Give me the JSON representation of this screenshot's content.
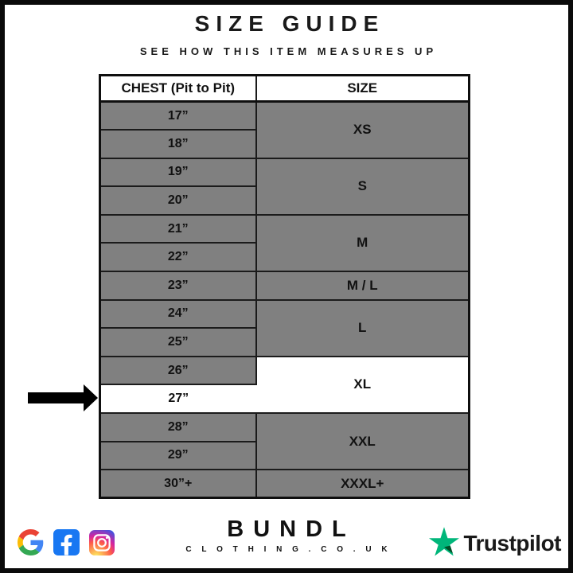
{
  "header": {
    "title": "SIZE GUIDE",
    "subtitle": "SEE HOW THIS ITEM MEASURES UP"
  },
  "chart_data": {
    "type": "table",
    "title": "SIZE GUIDE",
    "subtitle": "SEE HOW THIS ITEM MEASURES UP",
    "columns": [
      "CHEST (Pit to Pit)",
      "SIZE"
    ],
    "rows": [
      [
        "17”",
        "XS"
      ],
      [
        "18”",
        "XS"
      ],
      [
        "19”",
        "S"
      ],
      [
        "20”",
        "S"
      ],
      [
        "21”",
        "M"
      ],
      [
        "22”",
        "M"
      ],
      [
        "23”",
        "M / L"
      ],
      [
        "24”",
        "L"
      ],
      [
        "25”",
        "L"
      ],
      [
        "26”",
        "XL"
      ],
      [
        "27”",
        "XL"
      ],
      [
        "28”",
        "XXL"
      ],
      [
        "29”",
        "XXL"
      ],
      [
        "30”+",
        "XXXL+"
      ]
    ],
    "highlighted_row": [
      "27”",
      "XL"
    ],
    "layout_hints": {
      "size_column_merged_by_group": true,
      "pointer_arrow_at_row": "27”",
      "grid": true
    }
  },
  "colors": {
    "cell_gray": "#808080",
    "highlight_white": "#ffffff",
    "table_border": "#1b1b1b",
    "arrow_black": "#000000",
    "trustpilot_green": "#00B67A",
    "trustpilot_dark_green": "#005128",
    "facebook_blue": "#1877F2"
  },
  "footer": {
    "social_icons": [
      "google",
      "facebook",
      "instagram"
    ],
    "brand_name": "BUNDL",
    "brand_domain": "C L O T H I N G . C O . U K",
    "trustpilot_label": "Trustpilot"
  }
}
